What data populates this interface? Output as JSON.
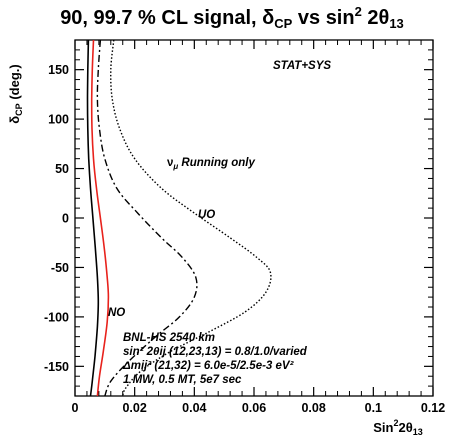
{
  "chart_data": {
    "type": "line",
    "title_text": "90, 99.7 % CL signal, δ",
    "title_sub": "CP",
    "title_rest": " vs sin",
    "title_sup": "2",
    "title_tail": " 2θ",
    "title_sub2": "13",
    "xlabel_main": "Sin",
    "xlabel_sup": "2",
    "xlabel_rest": "2θ",
    "xlabel_sub": "13",
    "ylabel_main": "δ",
    "ylabel_sub": "CP",
    "ylabel_rest": " (deg.)",
    "xlim": [
      0,
      0.12
    ],
    "ylim": [
      -180,
      180
    ],
    "xticks": [
      0,
      0.02,
      0.04,
      0.06,
      0.08,
      0.1,
      0.12
    ],
    "xtick_labels": [
      "0",
      "0.02",
      "0.04",
      "0.06",
      "0.08",
      "0.1",
      "0.12"
    ],
    "yticks": [
      150,
      100,
      50,
      0,
      -50,
      -100,
      -150
    ],
    "ytick_labels": [
      "150",
      "100",
      "50",
      "0",
      "-50",
      "-100",
      "-150"
    ],
    "grid": false,
    "annotations": {
      "stat_sys": "STAT+SYS",
      "nu_mu": "ν",
      "nu_mu_sub": "μ",
      "running_only": " Running only",
      "uo": "UO",
      "no": "NO",
      "info_line1": "BNL-HS  2540 km",
      "info_line2": "sin² 2θij (12,23,13) = 0.8/1.0/varied",
      "info_line3": "Δmij² (21,32) = 6.0e-5/2.5e-3 eV²",
      "info_line4": "1 MW, 0.5 MT, 5e7 sec"
    },
    "series": [
      {
        "style": "solid",
        "color": "#000000",
        "points": [
          [
            0.0045,
            180
          ],
          [
            0.0043,
            150
          ],
          [
            0.0042,
            120
          ],
          [
            0.0043,
            90
          ],
          [
            0.0046,
            60
          ],
          [
            0.0052,
            30
          ],
          [
            0.006,
            0
          ],
          [
            0.0068,
            -30
          ],
          [
            0.0075,
            -60
          ],
          [
            0.0078,
            -85
          ],
          [
            0.0075,
            -110
          ],
          [
            0.0067,
            -140
          ],
          [
            0.0058,
            -165
          ],
          [
            0.0052,
            -180
          ]
        ]
      },
      {
        "style": "solid",
        "color": "#e8221c",
        "points": [
          [
            0.0062,
            180
          ],
          [
            0.0058,
            150
          ],
          [
            0.0056,
            120
          ],
          [
            0.0057,
            90
          ],
          [
            0.0062,
            60
          ],
          [
            0.0072,
            30
          ],
          [
            0.0085,
            0
          ],
          [
            0.0098,
            -30
          ],
          [
            0.0108,
            -60
          ],
          [
            0.0112,
            -80
          ],
          [
            0.0108,
            -105
          ],
          [
            0.0095,
            -135
          ],
          [
            0.0082,
            -160
          ],
          [
            0.0075,
            -180
          ]
        ]
      },
      {
        "style": "dashdot",
        "color": "#000000",
        "points": [
          [
            0.0085,
            180
          ],
          [
            0.0078,
            150
          ],
          [
            0.0075,
            120
          ],
          [
            0.0082,
            90
          ],
          [
            0.01,
            60
          ],
          [
            0.014,
            30
          ],
          [
            0.021,
            5
          ],
          [
            0.029,
            -20
          ],
          [
            0.036,
            -40
          ],
          [
            0.0405,
            -60
          ],
          [
            0.04,
            -80
          ],
          [
            0.035,
            -100
          ],
          [
            0.027,
            -120
          ],
          [
            0.018,
            -145
          ],
          [
            0.012,
            -165
          ],
          [
            0.01,
            -180
          ]
        ]
      },
      {
        "style": "dotted",
        "color": "#000000",
        "points": [
          [
            0.013,
            180
          ],
          [
            0.012,
            150
          ],
          [
            0.0125,
            120
          ],
          [
            0.015,
            90
          ],
          [
            0.02,
            60
          ],
          [
            0.029,
            30
          ],
          [
            0.04,
            5
          ],
          [
            0.052,
            -20
          ],
          [
            0.061,
            -40
          ],
          [
            0.0655,
            -55
          ],
          [
            0.064,
            -75
          ],
          [
            0.057,
            -95
          ],
          [
            0.045,
            -115
          ],
          [
            0.032,
            -135
          ],
          [
            0.022,
            -155
          ],
          [
            0.017,
            -172
          ],
          [
            0.016,
            -180
          ]
        ]
      }
    ]
  }
}
